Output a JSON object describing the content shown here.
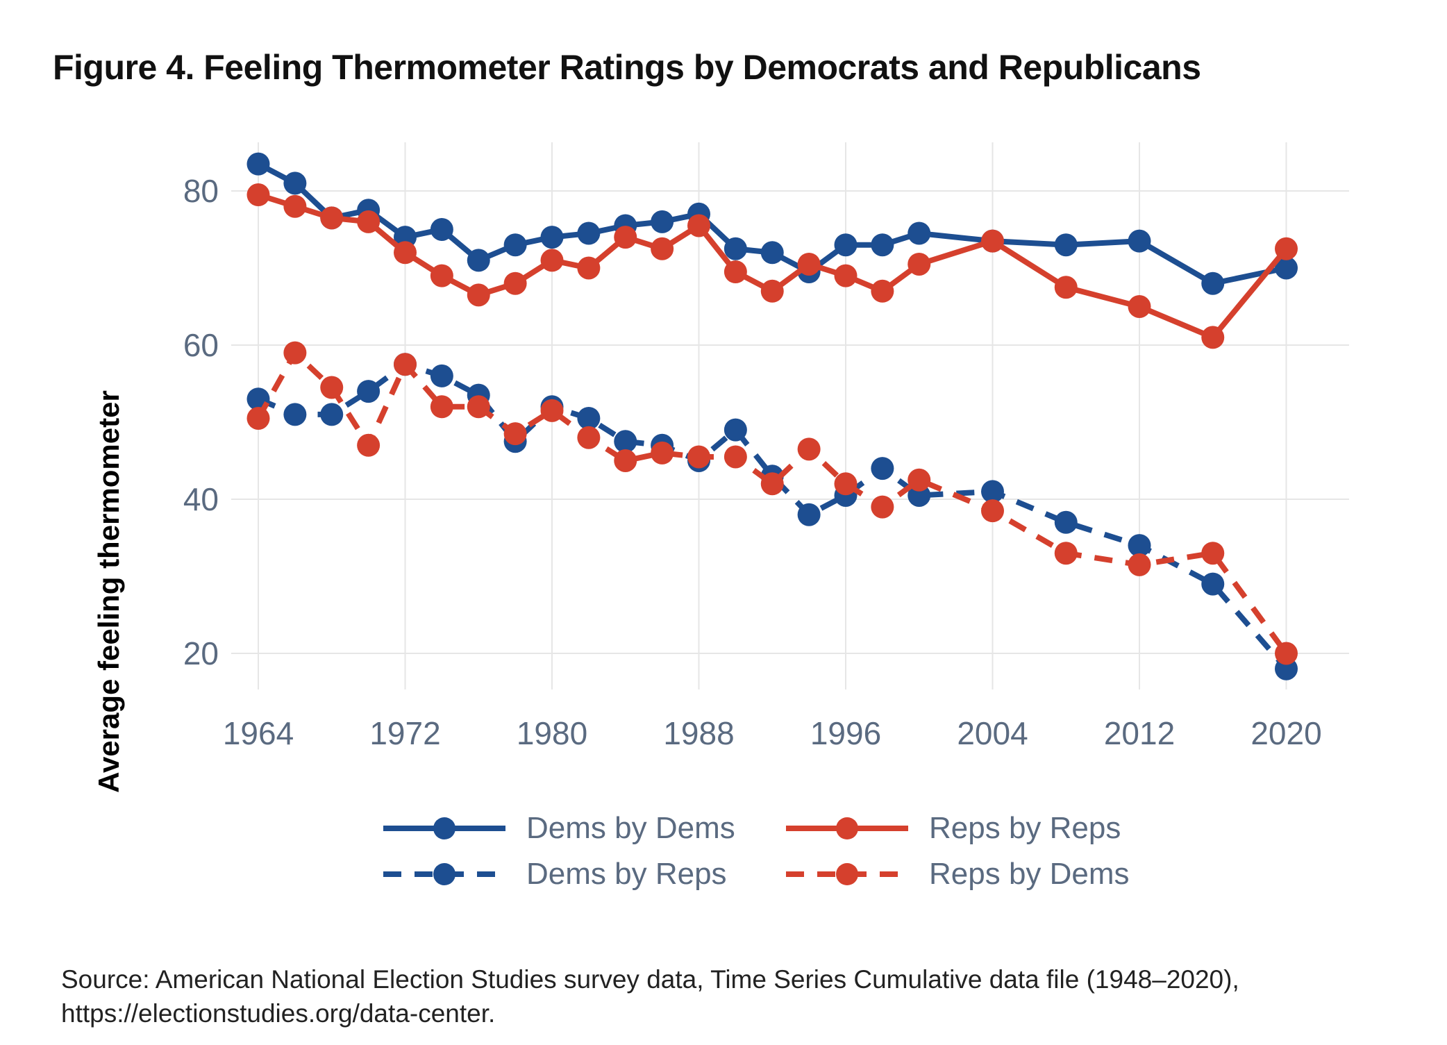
{
  "title": "Figure 4. Feeling Thermometer Ratings by Democrats and Republicans",
  "source": {
    "line1": "Source: American National Election Studies survey data, Time Series Cumulative data file (1948–2020),",
    "line2": "https://electionstudies.org/data-center."
  },
  "colors": {
    "blue": "#1d4e91",
    "red": "#d5402d",
    "axis_text": "#5a6a80",
    "grid": "#e6e6e6",
    "title_text": "#111111",
    "source_text": "#222222"
  },
  "chart_data": {
    "type": "line",
    "title": "Figure 4. Feeling Thermometer Ratings by Democrats and Republicans",
    "xlabel": "",
    "ylabel": "Average feeling thermometer",
    "x": [
      1964,
      1966,
      1968,
      1970,
      1972,
      1974,
      1976,
      1978,
      1980,
      1982,
      1984,
      1986,
      1988,
      1990,
      1992,
      1994,
      1996,
      1998,
      2000,
      2004,
      2008,
      2012,
      2016,
      2020
    ],
    "series": [
      {
        "name": "Dems by Dems",
        "color_key": "blue",
        "dash": false,
        "values": [
          83.5,
          81,
          76.5,
          77.5,
          74,
          75,
          71,
          73,
          74,
          74.5,
          75.5,
          76,
          77,
          72.5,
          72,
          69.5,
          73,
          73,
          74.5,
          73.5,
          73,
          73.5,
          68,
          70
        ]
      },
      {
        "name": "Reps by Reps",
        "color_key": "red",
        "dash": false,
        "values": [
          79.5,
          78,
          76.5,
          76,
          72,
          69,
          66.5,
          68,
          71,
          70,
          74,
          72.5,
          75.5,
          69.5,
          67,
          70.5,
          69,
          67,
          70.5,
          73.5,
          67.5,
          65,
          61,
          72.5
        ]
      },
      {
        "name": "Dems by Reps",
        "color_key": "blue",
        "dash": true,
        "values": [
          53,
          51,
          51,
          54,
          57.5,
          56,
          53.5,
          47.5,
          52,
          50.5,
          47.5,
          47,
          45,
          49,
          43,
          38,
          40.5,
          44,
          40.5,
          41,
          37,
          34,
          29,
          18
        ]
      },
      {
        "name": "Reps by Dems",
        "color_key": "red",
        "dash": true,
        "values": [
          50.5,
          59,
          54.5,
          47,
          57.5,
          52,
          52,
          48.5,
          51.5,
          48,
          45,
          46,
          45.5,
          45.5,
          42,
          46.5,
          42,
          39,
          42.5,
          38.5,
          33,
          31.5,
          33,
          20
        ]
      }
    ],
    "x_ticks": [
      1964,
      1972,
      1980,
      1988,
      1996,
      2004,
      2012,
      2020
    ],
    "y_ticks": [
      20,
      40,
      60,
      80
    ],
    "xlim": [
      1962.5,
      2023.5
    ],
    "ylim": [
      15,
      87
    ],
    "grid": true,
    "legend_position": "bottom"
  },
  "legend": {
    "rows": [
      [
        "Dems by Dems",
        "Reps by Reps"
      ],
      [
        "Dems by Reps",
        "Reps by Dems"
      ]
    ]
  }
}
